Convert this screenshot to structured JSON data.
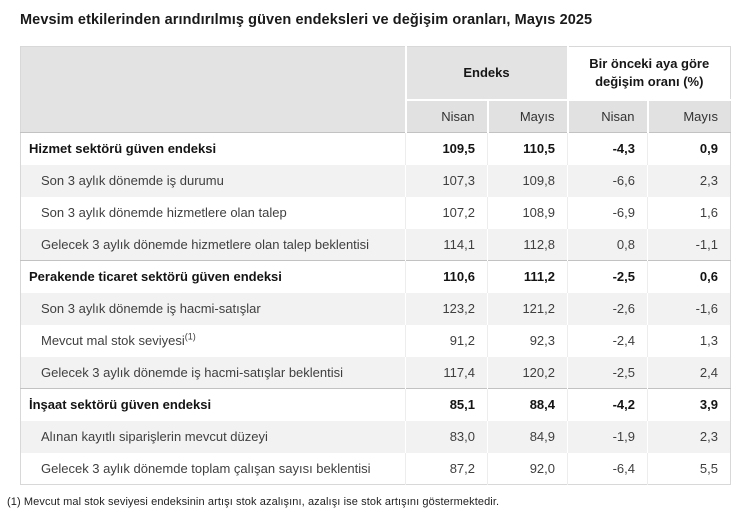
{
  "page": {
    "title": "Mevsim etkilerinden arındırılmış güven endeksleri ve değişim oranları, Mayıs 2025",
    "footnote": "(1) Mevcut mal stok seviyesi endeksinin artışı stok azalışını, azalışı ise stok artışını göstermektedir."
  },
  "colors": {
    "header_gray": "#e3e3e3",
    "subheader_gray": "#e1e1e1",
    "row_stripe_gray": "#f2f2f2",
    "section_border": "#c2c2c2",
    "table_border": "#d8d8d8",
    "text_dark": "#1a1a1a",
    "text_body": "#3f3f3f"
  },
  "table": {
    "group_headers": [
      {
        "label": "Endeks",
        "span": 2
      },
      {
        "label": "Bir önceki aya göre değişim oranı (%)",
        "span": 2
      }
    ],
    "column_headers": [
      "Nisan",
      "Mayıs",
      "Nisan",
      "Mayıs"
    ],
    "rows": [
      {
        "label": "Hizmet sektörü güven endeksi",
        "bold": true,
        "values": [
          "109,5",
          "110,5",
          "-4,3",
          "0,9"
        ]
      },
      {
        "label": "Son 3 aylık dönemde iş durumu",
        "bold": false,
        "values": [
          "107,3",
          "109,8",
          "-6,6",
          "2,3"
        ]
      },
      {
        "label": "Son 3 aylık dönemde hizmetlere olan talep",
        "bold": false,
        "values": [
          "107,2",
          "108,9",
          "-6,9",
          "1,6"
        ]
      },
      {
        "label": "Gelecek 3 aylık dönemde hizmetlere olan talep beklentisi",
        "bold": false,
        "values": [
          "114,1",
          "112,8",
          "0,8",
          "-1,1"
        ]
      },
      {
        "label": "Perakende ticaret sektörü güven endeksi",
        "bold": true,
        "values": [
          "110,6",
          "111,2",
          "-2,5",
          "0,6"
        ]
      },
      {
        "label": "Son 3 aylık dönemde iş hacmi-satışlar",
        "bold": false,
        "values": [
          "123,2",
          "121,2",
          "-2,6",
          "-1,6"
        ]
      },
      {
        "label": "Mevcut mal stok seviyesi",
        "sup": "(1)",
        "bold": false,
        "values": [
          "91,2",
          "92,3",
          "-2,4",
          "1,3"
        ]
      },
      {
        "label": "Gelecek 3 aylık dönemde iş hacmi-satışlar beklentisi",
        "bold": false,
        "values": [
          "117,4",
          "120,2",
          "-2,5",
          "2,4"
        ]
      },
      {
        "label": "İnşaat sektörü güven endeksi",
        "bold": true,
        "values": [
          "85,1",
          "88,4",
          "-4,2",
          "3,9"
        ]
      },
      {
        "label": "Alınan kayıtlı siparişlerin mevcut düzeyi",
        "bold": false,
        "values": [
          "83,0",
          "84,9",
          "-1,9",
          "2,3"
        ]
      },
      {
        "label": "Gelecek 3 aylık dönemde toplam çalışan sayısı beklentisi",
        "bold": false,
        "values": [
          "87,2",
          "92,0",
          "-6,4",
          "5,5"
        ]
      }
    ]
  }
}
